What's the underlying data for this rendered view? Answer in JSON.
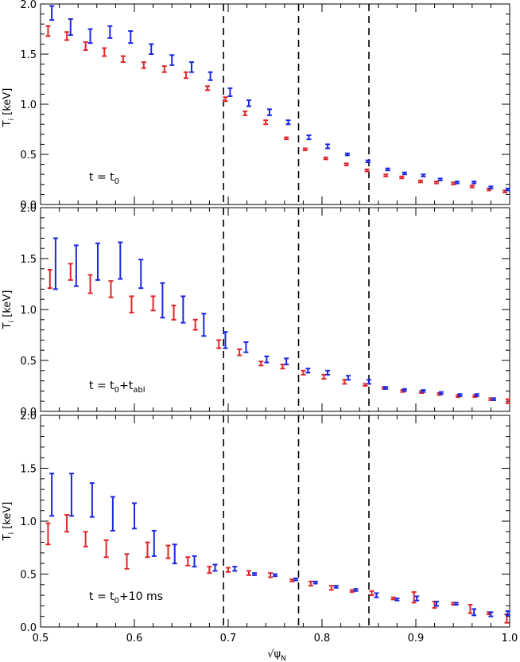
{
  "figure": {
    "xlabel": "√ψ",
    "xlabel_sub": "N",
    "xticks": [
      "0.5",
      "0.6",
      "0.7",
      "0.8",
      "0.9",
      "1.0"
    ],
    "yticks": [
      "0.0",
      "0.5",
      "1.0",
      "1.5",
      "2.0"
    ],
    "ylabel_main": "T",
    "ylabel_sub": "i",
    "ylabel_unit": "[keV]"
  },
  "panels": [
    {
      "annotation": {
        "pre": "t = t",
        "sub": "0",
        "post": ""
      }
    },
    {
      "annotation": {
        "pre": "t = t",
        "sub": "0",
        "post": "+t",
        "sub2": "abl"
      }
    },
    {
      "annotation": {
        "pre": "t = t",
        "sub": "0",
        "post": "+10 ms"
      }
    }
  ],
  "colors": {
    "red": "#e0262a",
    "blue": "#1a28e0",
    "dashed": "#000000"
  },
  "chart_data": [
    {
      "type": "scatter",
      "title": "",
      "xlabel": "√ψN",
      "ylabel": "Ti [keV]",
      "xlim": [
        0.5,
        1.0
      ],
      "ylim": [
        0.0,
        2.0
      ],
      "vlines": [
        0.695,
        0.775,
        0.85
      ],
      "series": [
        {
          "color": "red",
          "points": [
            [
              0.508,
              1.73,
              0.05
            ],
            [
              0.528,
              1.68,
              0.04
            ],
            [
              0.548,
              1.58,
              0.04
            ],
            [
              0.568,
              1.52,
              0.04
            ],
            [
              0.588,
              1.45,
              0.03
            ],
            [
              0.61,
              1.39,
              0.03
            ],
            [
              0.632,
              1.35,
              0.03
            ],
            [
              0.655,
              1.29,
              0.03
            ],
            [
              0.678,
              1.16,
              0.02
            ],
            [
              0.697,
              1.05,
              0.02
            ],
            [
              0.718,
              0.91,
              0.02
            ],
            [
              0.74,
              0.82,
              0.02
            ],
            [
              0.762,
              0.66,
              0.01
            ],
            [
              0.782,
              0.55,
              0.01
            ],
            [
              0.804,
              0.46,
              0.01
            ],
            [
              0.826,
              0.4,
              0.01
            ],
            [
              0.848,
              0.34,
              0.01
            ],
            [
              0.868,
              0.29,
              0.01
            ],
            [
              0.885,
              0.27,
              0.01
            ],
            [
              0.905,
              0.23,
              0.01
            ],
            [
              0.922,
              0.22,
              0.01
            ],
            [
              0.94,
              0.21,
              0.01
            ],
            [
              0.96,
              0.18,
              0.01
            ],
            [
              0.978,
              0.15,
              0.01
            ],
            [
              0.995,
              0.13,
              0.01
            ]
          ]
        },
        {
          "color": "blue",
          "points": [
            [
              0.512,
              1.91,
              0.07
            ],
            [
              0.532,
              1.77,
              0.08
            ],
            [
              0.553,
              1.68,
              0.07
            ],
            [
              0.574,
              1.72,
              0.06
            ],
            [
              0.596,
              1.67,
              0.06
            ],
            [
              0.618,
              1.55,
              0.05
            ],
            [
              0.64,
              1.44,
              0.05
            ],
            [
              0.661,
              1.37,
              0.05
            ],
            [
              0.681,
              1.28,
              0.04
            ],
            [
              0.702,
              1.12,
              0.04
            ],
            [
              0.722,
              1.01,
              0.03
            ],
            [
              0.744,
              0.92,
              0.03
            ],
            [
              0.764,
              0.82,
              0.02
            ],
            [
              0.786,
              0.67,
              0.02
            ],
            [
              0.806,
              0.58,
              0.02
            ],
            [
              0.827,
              0.5,
              0.01
            ],
            [
              0.849,
              0.43,
              0.01
            ],
            [
              0.87,
              0.35,
              0.01
            ],
            [
              0.888,
              0.31,
              0.01
            ],
            [
              0.908,
              0.29,
              0.01
            ],
            [
              0.926,
              0.25,
              0.01
            ],
            [
              0.944,
              0.22,
              0.01
            ],
            [
              0.962,
              0.22,
              0.01
            ],
            [
              0.98,
              0.17,
              0.01
            ],
            [
              0.998,
              0.15,
              0.01
            ]
          ]
        }
      ],
      "annotation": "t = t0"
    },
    {
      "type": "scatter",
      "title": "",
      "xlabel": "√ψN",
      "ylabel": "Ti [keV]",
      "xlim": [
        0.5,
        1.0
      ],
      "ylim": [
        0.0,
        2.0
      ],
      "vlines": [
        0.695,
        0.775,
        0.85
      ],
      "series": [
        {
          "color": "red",
          "points": [
            [
              0.51,
              1.3,
              0.09
            ],
            [
              0.532,
              1.37,
              0.08
            ],
            [
              0.553,
              1.25,
              0.09
            ],
            [
              0.575,
              1.2,
              0.08
            ],
            [
              0.597,
              1.05,
              0.08
            ],
            [
              0.62,
              1.06,
              0.07
            ],
            [
              0.642,
              0.97,
              0.07
            ],
            [
              0.665,
              0.85,
              0.05
            ],
            [
              0.69,
              0.66,
              0.04
            ],
            [
              0.712,
              0.58,
              0.03
            ],
            [
              0.735,
              0.47,
              0.02
            ],
            [
              0.758,
              0.44,
              0.02
            ],
            [
              0.78,
              0.38,
              0.02
            ],
            [
              0.802,
              0.34,
              0.02
            ],
            [
              0.824,
              0.29,
              0.02
            ],
            [
              0.846,
              0.26,
              0.01
            ],
            [
              0.866,
              0.23,
              0.01
            ],
            [
              0.886,
              0.2,
              0.01
            ],
            [
              0.906,
              0.19,
              0.01
            ],
            [
              0.925,
              0.17,
              0.01
            ],
            [
              0.945,
              0.15,
              0.01
            ],
            [
              0.963,
              0.15,
              0.01
            ],
            [
              0.98,
              0.12,
              0.01
            ],
            [
              0.998,
              0.1,
              0.02
            ]
          ]
        },
        {
          "color": "blue",
          "points": [
            [
              0.516,
              1.45,
              0.25
            ],
            [
              0.538,
              1.43,
              0.2
            ],
            [
              0.561,
              1.47,
              0.18
            ],
            [
              0.585,
              1.48,
              0.18
            ],
            [
              0.607,
              1.35,
              0.14
            ],
            [
              0.63,
              1.09,
              0.17
            ],
            [
              0.652,
              1.0,
              0.13
            ],
            [
              0.674,
              0.85,
              0.11
            ],
            [
              0.697,
              0.7,
              0.08
            ],
            [
              0.719,
              0.63,
              0.05
            ],
            [
              0.741,
              0.51,
              0.03
            ],
            [
              0.762,
              0.49,
              0.03
            ],
            [
              0.785,
              0.4,
              0.02
            ],
            [
              0.806,
              0.38,
              0.02
            ],
            [
              0.828,
              0.33,
              0.02
            ],
            [
              0.85,
              0.29,
              0.02
            ],
            [
              0.868,
              0.23,
              0.01
            ],
            [
              0.888,
              0.21,
              0.01
            ],
            [
              0.908,
              0.2,
              0.01
            ],
            [
              0.927,
              0.18,
              0.01
            ],
            [
              0.947,
              0.16,
              0.01
            ],
            [
              0.965,
              0.16,
              0.01
            ],
            [
              0.983,
              0.12,
              0.01
            ]
          ]
        }
      ],
      "annotation": "t = t0+tabl"
    },
    {
      "type": "scatter",
      "title": "",
      "xlabel": "√ψN",
      "ylabel": "Ti [keV]",
      "xlim": [
        0.5,
        1.0
      ],
      "ylim": [
        0.0,
        2.0
      ],
      "vlines": [
        0.695,
        0.775,
        0.85
      ],
      "series": [
        {
          "color": "red",
          "points": [
            [
              0.508,
              0.88,
              0.1
            ],
            [
              0.528,
              0.98,
              0.08
            ],
            [
              0.548,
              0.83,
              0.07
            ],
            [
              0.57,
              0.74,
              0.08
            ],
            [
              0.592,
              0.62,
              0.07
            ],
            [
              0.614,
              0.73,
              0.07
            ],
            [
              0.636,
              0.71,
              0.06
            ],
            [
              0.657,
              0.62,
              0.04
            ],
            [
              0.68,
              0.54,
              0.03
            ],
            [
              0.7,
              0.54,
              0.02
            ],
            [
              0.722,
              0.51,
              0.02
            ],
            [
              0.745,
              0.49,
              0.02
            ],
            [
              0.768,
              0.44,
              0.01
            ],
            [
              0.788,
              0.41,
              0.02
            ],
            [
              0.81,
              0.37,
              0.02
            ],
            [
              0.832,
              0.34,
              0.01
            ],
            [
              0.853,
              0.32,
              0.02
            ],
            [
              0.876,
              0.27,
              0.01
            ],
            [
              0.898,
              0.28,
              0.05
            ],
            [
              0.92,
              0.21,
              0.03
            ],
            [
              0.94,
              0.22,
              0.01
            ],
            [
              0.958,
              0.17,
              0.04
            ],
            [
              0.978,
              0.13,
              0.01
            ],
            [
              0.997,
              0.08,
              0.04
            ]
          ]
        },
        {
          "color": "blue",
          "points": [
            [
              0.512,
              1.25,
              0.2
            ],
            [
              0.533,
              1.25,
              0.2
            ],
            [
              0.555,
              1.2,
              0.16
            ],
            [
              0.577,
              1.07,
              0.16
            ],
            [
              0.6,
              1.05,
              0.12
            ],
            [
              0.621,
              0.79,
              0.12
            ],
            [
              0.643,
              0.69,
              0.09
            ],
            [
              0.664,
              0.62,
              0.05
            ],
            [
              0.686,
              0.56,
              0.03
            ],
            [
              0.707,
              0.55,
              0.02
            ],
            [
              0.728,
              0.5,
              0.01
            ],
            [
              0.75,
              0.49,
              0.01
            ],
            [
              0.772,
              0.45,
              0.01
            ],
            [
              0.793,
              0.42,
              0.01
            ],
            [
              0.815,
              0.38,
              0.01
            ],
            [
              0.836,
              0.35,
              0.01
            ],
            [
              0.858,
              0.3,
              0.02
            ],
            [
              0.88,
              0.26,
              0.01
            ],
            [
              0.901,
              0.27,
              0.02
            ],
            [
              0.922,
              0.22,
              0.02
            ],
            [
              0.943,
              0.22,
              0.01
            ],
            [
              0.962,
              0.14,
              0.03
            ],
            [
              0.98,
              0.12,
              0.02
            ],
            [
              0.998,
              0.13,
              0.02
            ]
          ]
        }
      ],
      "annotation": "t = t0+10 ms"
    }
  ]
}
